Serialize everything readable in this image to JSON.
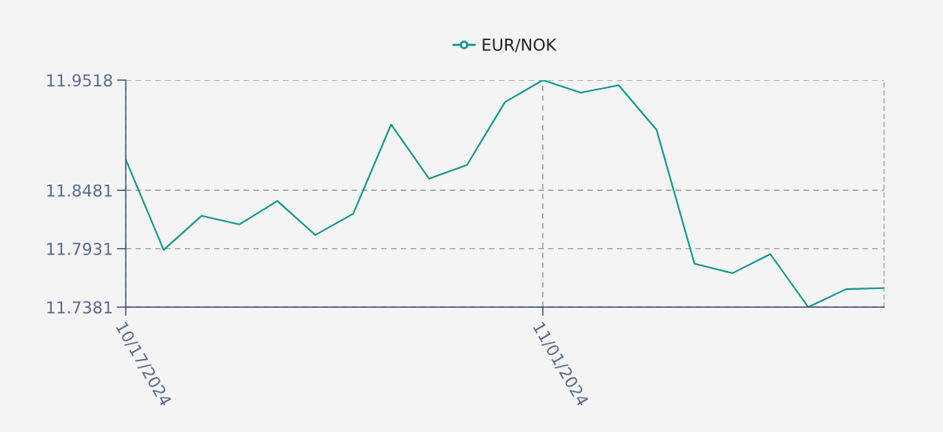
{
  "chart_data": {
    "type": "line",
    "categories": [
      "10/17/2024",
      null,
      null,
      null,
      null,
      null,
      null,
      null,
      null,
      null,
      null,
      "11/01/2024",
      null,
      null,
      null,
      null,
      null,
      null,
      null,
      null,
      null
    ],
    "series": [
      {
        "name": "EUR/NOK",
        "color": "#12998a",
        "values": [
          11.877,
          11.792,
          11.824,
          11.816,
          11.838,
          11.806,
          11.826,
          11.91,
          11.859,
          11.872,
          11.931,
          11.9518,
          11.94,
          11.947,
          11.905,
          11.779,
          11.77,
          11.788,
          11.7381,
          11.755,
          11.756
        ]
      }
    ],
    "ylim": [
      11.7381,
      11.9518
    ],
    "yticks": [
      11.7381,
      11.7931,
      11.8481,
      11.9518
    ],
    "grid": true,
    "legend": "top",
    "line_style": "solid"
  }
}
